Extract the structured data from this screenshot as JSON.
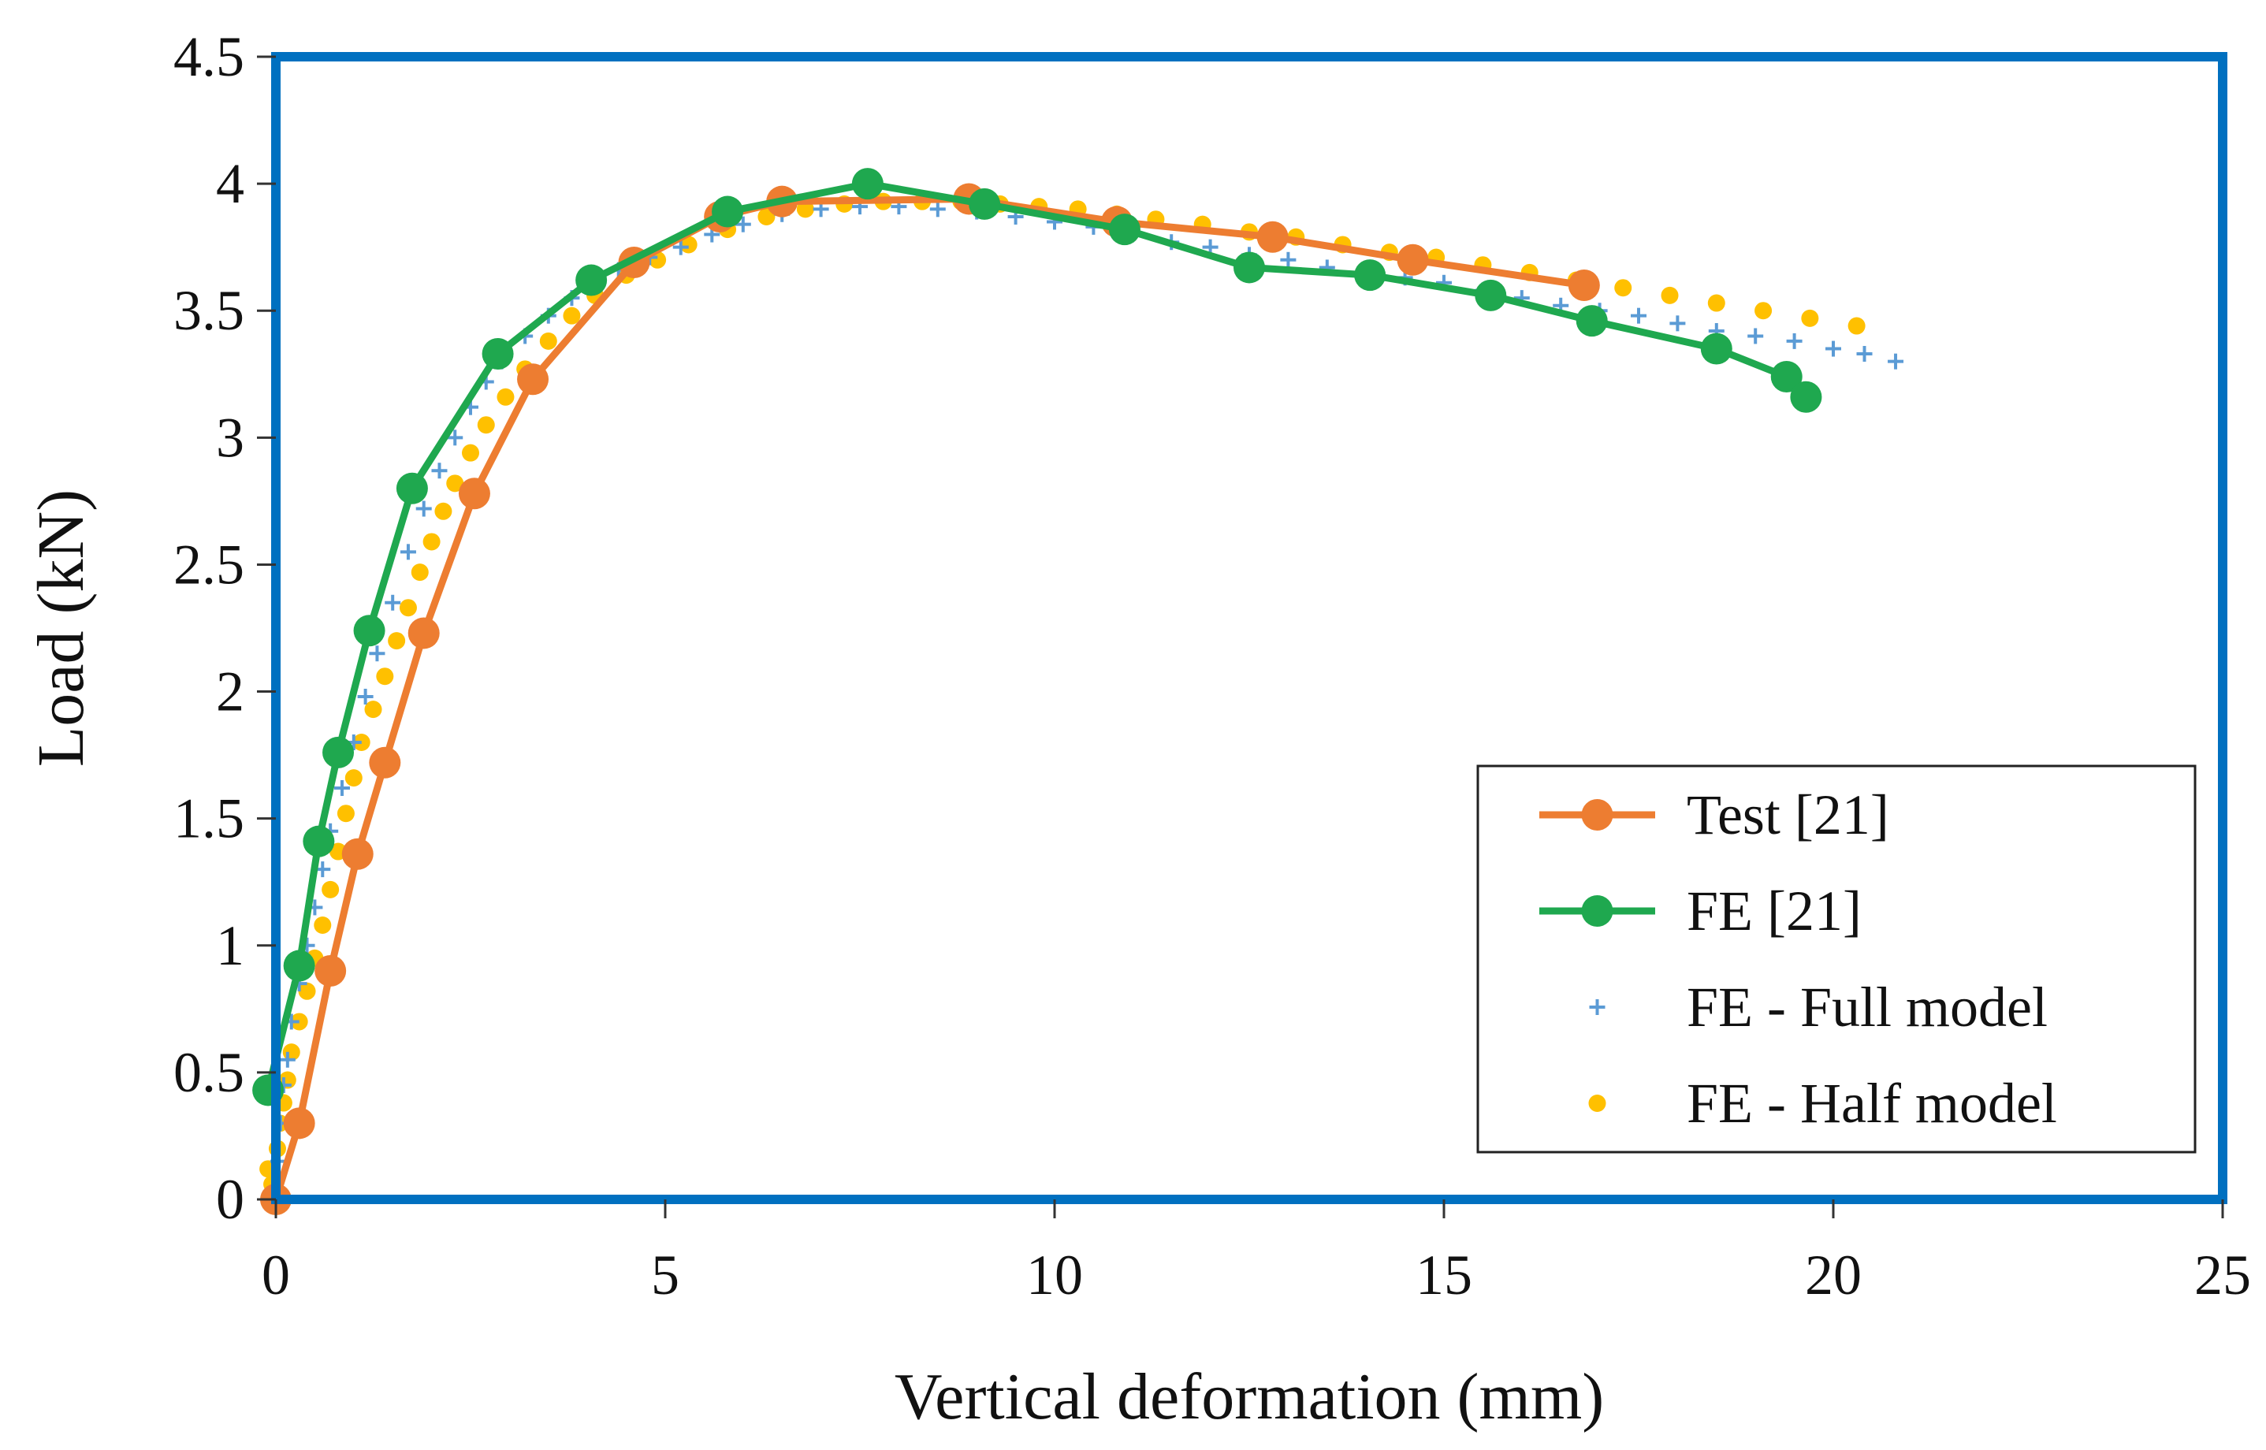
{
  "chart_data": {
    "type": "line",
    "title": "",
    "xlabel": "Vertical deformation (mm)",
    "ylabel": "Load (kN)",
    "xlim": [
      0,
      25
    ],
    "ylim": [
      0,
      4.5
    ],
    "x_ticks": [
      "0",
      "5",
      "10",
      "15",
      "20",
      "25"
    ],
    "y_ticks": [
      "0",
      "0.5",
      "1",
      "1.5",
      "2",
      "2.5",
      "3",
      "3.5",
      "4",
      "4.5"
    ],
    "grid": false,
    "legend_position": "bottom-right",
    "frame_color": "#0070C0",
    "series": [
      {
        "name": "Test [21]",
        "style": "line-circle",
        "color": "#ED7D31",
        "x": [
          0.0,
          0.3,
          0.7,
          1.05,
          1.4,
          1.9,
          2.55,
          3.3,
          4.6,
          5.7,
          6.5,
          8.9,
          10.8,
          12.8,
          14.6,
          16.8
        ],
        "y": [
          0.0,
          0.3,
          0.9,
          1.36,
          1.72,
          2.23,
          2.78,
          3.23,
          3.69,
          3.87,
          3.93,
          3.94,
          3.85,
          3.79,
          3.7,
          3.6
        ]
      },
      {
        "name": "FE [21]",
        "style": "line-circle",
        "color": "#1FA84F",
        "x": [
          -0.1,
          0.3,
          0.55,
          0.8,
          1.2,
          1.75,
          2.85,
          4.05,
          5.8,
          7.6,
          9.1,
          10.9,
          12.5,
          14.05,
          15.6,
          16.9,
          18.5,
          19.4,
          19.65
        ],
        "y": [
          0.43,
          0.92,
          1.41,
          1.76,
          2.24,
          2.8,
          3.33,
          3.62,
          3.89,
          4.0,
          3.92,
          3.82,
          3.67,
          3.64,
          3.56,
          3.46,
          3.35,
          3.24,
          3.16
        ]
      },
      {
        "name": "FE - Full model",
        "style": "marker-plus",
        "color": "#5B9BD5",
        "x": [
          0.0,
          0.03,
          0.06,
          0.1,
          0.15,
          0.2,
          0.3,
          0.4,
          0.5,
          0.6,
          0.7,
          0.85,
          1.0,
          1.15,
          1.3,
          1.5,
          1.7,
          1.9,
          2.1,
          2.3,
          2.5,
          2.7,
          2.9,
          3.2,
          3.5,
          3.8,
          4.1,
          4.4,
          4.8,
          5.2,
          5.6,
          6.0,
          6.5,
          7.0,
          7.5,
          8.0,
          8.5,
          9.0,
          9.5,
          10.0,
          10.5,
          11.0,
          11.5,
          12.0,
          12.5,
          13.0,
          13.5,
          14.0,
          14.5,
          15.0,
          15.5,
          16.0,
          16.5,
          17.0,
          17.5,
          18.0,
          18.5,
          19.0,
          19.5,
          20.0,
          20.4,
          20.8
        ],
        "y": [
          0.0,
          0.15,
          0.3,
          0.45,
          0.55,
          0.7,
          0.85,
          1.0,
          1.15,
          1.3,
          1.45,
          1.62,
          1.8,
          1.98,
          2.15,
          2.35,
          2.55,
          2.72,
          2.87,
          3.0,
          3.12,
          3.22,
          3.3,
          3.4,
          3.48,
          3.55,
          3.61,
          3.66,
          3.71,
          3.75,
          3.8,
          3.84,
          3.88,
          3.9,
          3.91,
          3.91,
          3.9,
          3.89,
          3.87,
          3.85,
          3.83,
          3.8,
          3.77,
          3.75,
          3.72,
          3.7,
          3.67,
          3.65,
          3.63,
          3.61,
          3.58,
          3.55,
          3.52,
          3.5,
          3.48,
          3.45,
          3.42,
          3.4,
          3.38,
          3.35,
          3.33,
          3.3
        ]
      },
      {
        "name": "FE - Half model",
        "style": "marker-dot",
        "color": "#FFC000",
        "x": [
          -0.1,
          -0.05,
          -0.02,
          0.0,
          0.02,
          0.05,
          0.1,
          0.15,
          0.2,
          0.3,
          0.4,
          0.5,
          0.6,
          0.7,
          0.8,
          0.9,
          1.0,
          1.1,
          1.25,
          1.4,
          1.55,
          1.7,
          1.85,
          2.0,
          2.15,
          2.3,
          2.5,
          2.7,
          2.95,
          3.2,
          3.5,
          3.8,
          4.1,
          4.5,
          4.9,
          5.3,
          5.8,
          6.3,
          6.8,
          7.3,
          7.8,
          8.3,
          8.8,
          9.3,
          9.8,
          10.3,
          10.8,
          11.3,
          11.9,
          12.5,
          13.1,
          13.7,
          14.3,
          14.9,
          15.5,
          16.1,
          16.7,
          17.3,
          17.9,
          18.5,
          19.1,
          19.7,
          20.3
        ],
        "y": [
          0.12,
          0.06,
          0.02,
          0.0,
          0.2,
          0.3,
          0.38,
          0.47,
          0.58,
          0.7,
          0.82,
          0.95,
          1.08,
          1.22,
          1.37,
          1.52,
          1.66,
          1.8,
          1.93,
          2.06,
          2.2,
          2.33,
          2.47,
          2.59,
          2.71,
          2.82,
          2.94,
          3.05,
          3.16,
          3.27,
          3.38,
          3.48,
          3.56,
          3.64,
          3.7,
          3.76,
          3.82,
          3.87,
          3.9,
          3.92,
          3.93,
          3.93,
          3.93,
          3.92,
          3.91,
          3.9,
          3.88,
          3.86,
          3.84,
          3.81,
          3.79,
          3.76,
          3.73,
          3.71,
          3.68,
          3.65,
          3.62,
          3.59,
          3.56,
          3.53,
          3.5,
          3.47,
          3.44
        ]
      }
    ]
  }
}
